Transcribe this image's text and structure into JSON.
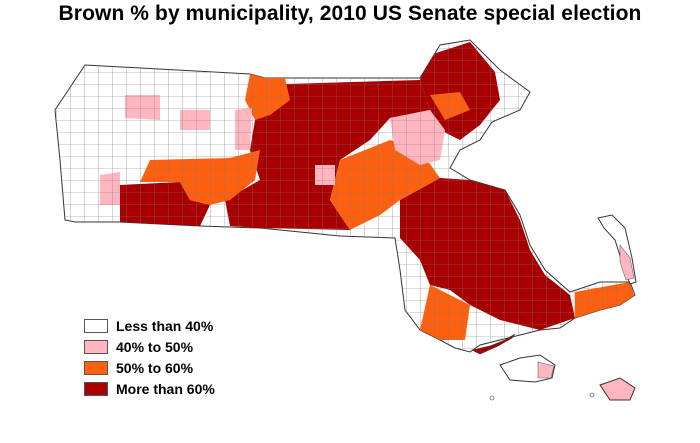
{
  "title": "Brown % by municipality, 2010 US Senate special election",
  "legend": [
    {
      "label": "Less than 40%",
      "color": "#ffffff"
    },
    {
      "label": "40% to 50%",
      "color": "#ffb6c1"
    },
    {
      "label": "50% to 60%",
      "color": "#ff6010"
    },
    {
      "label": "More than 60%",
      "color": "#a80000"
    }
  ],
  "colors": {
    "border": "#666666",
    "outline": "#333333"
  }
}
